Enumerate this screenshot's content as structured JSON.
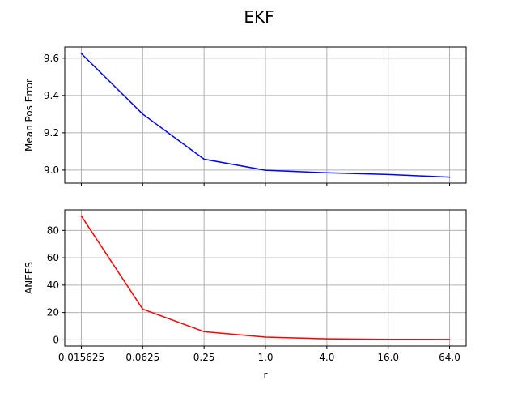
{
  "title": "EKF",
  "chart_data": [
    {
      "type": "line",
      "x_scale": "log2",
      "x": [
        0.015625,
        0.0625,
        0.25,
        1.0,
        4.0,
        16.0,
        64.0
      ],
      "x_tick_labels": [
        "0.015625",
        "0.0625",
        "0.25",
        "1.0",
        "4.0",
        "16.0",
        "64.0"
      ],
      "xlabel": "",
      "ylabel": "Mean Pos Error",
      "ylim": [
        8.93,
        9.66
      ],
      "y_ticks": [
        9.0,
        9.2,
        9.4,
        9.6
      ],
      "y_tick_labels": [
        "9.0",
        "9.2",
        "9.4",
        "9.6"
      ],
      "grid": true,
      "series": [
        {
          "color": "#0000ff",
          "values": [
            9.625,
            9.3,
            9.058,
            8.999,
            8.985,
            8.976,
            8.962
          ]
        }
      ]
    },
    {
      "type": "line",
      "x_scale": "log2",
      "x": [
        0.015625,
        0.0625,
        0.25,
        1.0,
        4.0,
        16.0,
        64.0
      ],
      "x_tick_labels": [
        "0.015625",
        "0.0625",
        "0.25",
        "1.0",
        "4.0",
        "16.0",
        "64.0"
      ],
      "xlabel": "r",
      "ylabel": "ANEES",
      "ylim": [
        -4.5,
        95
      ],
      "y_ticks": [
        0,
        20,
        40,
        60,
        80
      ],
      "y_tick_labels": [
        "0",
        "20",
        "40",
        "60",
        "80"
      ],
      "grid": true,
      "series": [
        {
          "color": "#ff0000",
          "values": [
            90.5,
            22.5,
            6.0,
            2.0,
            0.8,
            0.4,
            0.3
          ]
        }
      ]
    }
  ]
}
